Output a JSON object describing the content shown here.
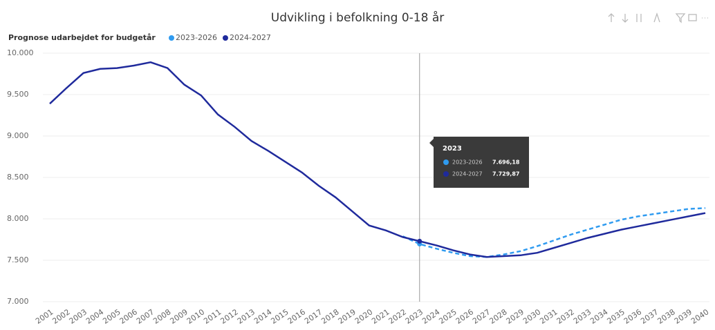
{
  "chart_data": {
    "type": "line",
    "title": "Udvikling i befolkning 0-18 år",
    "legend_title": "Prognose udarbejdet for budgetår",
    "categories": [
      "2001",
      "2002",
      "2003",
      "2004",
      "2005",
      "2006",
      "2007",
      "2008",
      "2009",
      "2010",
      "2011",
      "2012",
      "2013",
      "2014",
      "2015",
      "2016",
      "2017",
      "2018",
      "2019",
      "2020",
      "2021",
      "2022",
      "2023",
      "2024",
      "2025",
      "2026",
      "2027",
      "2028",
      "2029",
      "2030",
      "2031",
      "2032",
      "2033",
      "2034",
      "2035",
      "2036",
      "2037",
      "2038",
      "2039",
      "2040"
    ],
    "series": [
      {
        "name": "2023-2026",
        "color": "#2f9bf0",
        "dashed": true,
        "values": [
          null,
          null,
          null,
          null,
          null,
          null,
          null,
          null,
          null,
          null,
          null,
          null,
          null,
          null,
          null,
          null,
          null,
          null,
          null,
          null,
          null,
          7790,
          7696.18,
          7640,
          7590,
          7550,
          7540,
          7570,
          7610,
          7670,
          7740,
          7810,
          7870,
          7930,
          7990,
          8030,
          8060,
          8090,
          8120,
          8130
        ]
      },
      {
        "name": "2024-2027",
        "color": "#1f2a9c",
        "dashed": false,
        "values": [
          9390,
          9580,
          9760,
          9810,
          9820,
          9850,
          9890,
          9820,
          9620,
          9490,
          9260,
          9110,
          8940,
          8820,
          8690,
          8560,
          8400,
          8260,
          8090,
          7920,
          7860,
          7780,
          7729.87,
          7680,
          7620,
          7570,
          7540,
          7550,
          7560,
          7590,
          7650,
          7710,
          7770,
          7820,
          7870,
          7910,
          7950,
          7990,
          8030,
          8070
        ]
      }
    ],
    "ylim": [
      7000,
      10000
    ],
    "yticks": [
      {
        "value": 7000,
        "label": "7.000"
      },
      {
        "value": 7500,
        "label": "7.500"
      },
      {
        "value": 8000,
        "label": "8.000"
      },
      {
        "value": 8500,
        "label": "8.500"
      },
      {
        "value": 9000,
        "label": "9.000"
      },
      {
        "value": 9500,
        "label": "9.500"
      },
      {
        "value": 10000,
        "label": "10.000"
      }
    ],
    "grid": true,
    "tooltip": {
      "title": "2023",
      "values": [
        7696.18,
        7729.87
      ],
      "value_labels": [
        "7.696,18",
        "7.729,87"
      ]
    }
  }
}
